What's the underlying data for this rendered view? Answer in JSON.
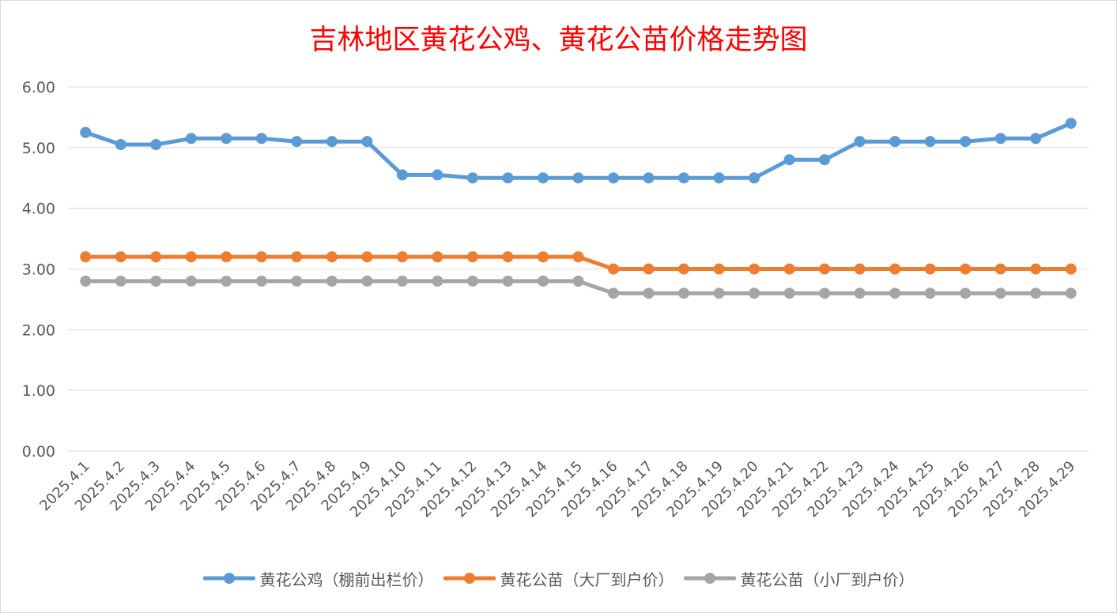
{
  "chart_data": {
    "type": "line",
    "title": "吉林地区黄花公鸡、黄花公苗价格走势图",
    "xlabel": "",
    "ylabel": "",
    "ylim": [
      0,
      6
    ],
    "y_ticks": [
      "0.00",
      "1.00",
      "2.00",
      "3.00",
      "4.00",
      "5.00",
      "6.00"
    ],
    "grid": true,
    "legend_position": "bottom",
    "categories": [
      "2025.4.1",
      "2025.4.2",
      "2025.4.3",
      "2025.4.4",
      "2025.4.5",
      "2025.4.6",
      "2025.4.7",
      "2025.4.8",
      "2025.4.9",
      "2025.4.10",
      "2025.4.11",
      "2025.4.12",
      "2025.4.13",
      "2025.4.14",
      "2025.4.15",
      "2025.4.16",
      "2025.4.17",
      "2025.4.18",
      "2025.4.19",
      "2025.4.20",
      "2025.4.21",
      "2025.4.22",
      "2025.4.23",
      "2025.4.24",
      "2025.4.25",
      "2025.4.26",
      "2025.4.27",
      "2025.4.28",
      "2025.4.29"
    ],
    "series": [
      {
        "name": "黄花公鸡（棚前出栏价）",
        "color": "#5b9bd5",
        "values": [
          5.25,
          5.05,
          5.05,
          5.15,
          5.15,
          5.15,
          5.1,
          5.1,
          5.1,
          4.55,
          4.55,
          4.5,
          4.5,
          4.5,
          4.5,
          4.5,
          4.5,
          4.5,
          4.5,
          4.5,
          4.8,
          4.8,
          5.1,
          5.1,
          5.1,
          5.1,
          5.15,
          5.15,
          5.4
        ]
      },
      {
        "name": "黄花公苗（大厂到户价）",
        "color": "#ed7d31",
        "values": [
          3.2,
          3.2,
          3.2,
          3.2,
          3.2,
          3.2,
          3.2,
          3.2,
          3.2,
          3.2,
          3.2,
          3.2,
          3.2,
          3.2,
          3.2,
          3.0,
          3.0,
          3.0,
          3.0,
          3.0,
          3.0,
          3.0,
          3.0,
          3.0,
          3.0,
          3.0,
          3.0,
          3.0,
          3.0
        ]
      },
      {
        "name": "黄花公苗（小厂到户价）",
        "color": "#a5a5a5",
        "values": [
          2.8,
          2.8,
          2.8,
          2.8,
          2.8,
          2.8,
          2.8,
          2.8,
          2.8,
          2.8,
          2.8,
          2.8,
          2.8,
          2.8,
          2.8,
          2.6,
          2.6,
          2.6,
          2.6,
          2.6,
          2.6,
          2.6,
          2.6,
          2.6,
          2.6,
          2.6,
          2.6,
          2.6,
          2.6
        ]
      }
    ]
  }
}
